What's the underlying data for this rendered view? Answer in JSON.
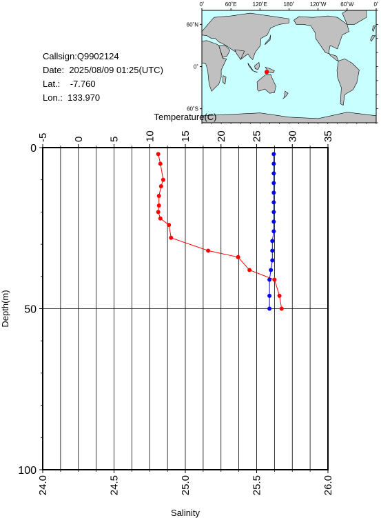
{
  "info": {
    "callsign_label": "Callsign:",
    "callsign": "Q9902124",
    "date_label": "Date:",
    "date": "2025/08/09 01:25(UTC)",
    "lat_label": "Lat.:",
    "lat": "-7.760",
    "lon_label": "Lon.:",
    "lon": "133.970"
  },
  "map": {
    "top_labels": [
      "0˚",
      "60˚E",
      "120˚E",
      "180˚",
      "120˚W",
      "60˚W",
      "0˚"
    ],
    "lat_labels": [
      "60˚N",
      "0˚",
      "60˚S"
    ],
    "ocean_color": "#c8ffff",
    "land_color": "#c0c0c0",
    "marker_color": "#ff0000",
    "marker_lon": 133.97,
    "marker_lat": -7.76
  },
  "chart_data": {
    "type": "line",
    "title": "",
    "top_axis": {
      "label": "Temperature(C)",
      "range": [
        -5,
        35
      ],
      "ticks": [
        "-5",
        "0",
        "5",
        "10",
        "15",
        "20",
        "25",
        "30",
        "35"
      ]
    },
    "bottom_axis": {
      "label": "Salinity",
      "range": [
        24.0,
        26.0
      ],
      "ticks": [
        "24.0",
        "24.5",
        "25.0",
        "25.5",
        "26.0"
      ]
    },
    "y_axis": {
      "label": "Depth(m)",
      "range": [
        0,
        100
      ],
      "inverted": true,
      "ticks": [
        "0",
        "50",
        "100"
      ]
    },
    "grid": true,
    "series": [
      {
        "color": "#ff0000",
        "axis": "temperature",
        "points": [
          [
            11.2,
            2
          ],
          [
            11.5,
            5
          ],
          [
            11.9,
            10
          ],
          [
            11.6,
            12
          ],
          [
            11.3,
            15
          ],
          [
            11.3,
            18
          ],
          [
            11.2,
            20
          ],
          [
            11.5,
            22
          ],
          [
            12.7,
            24
          ],
          [
            13.0,
            28
          ],
          [
            18.2,
            32
          ],
          [
            22.4,
            34
          ],
          [
            24.0,
            38
          ],
          [
            27.5,
            41
          ],
          [
            28.2,
            46
          ],
          [
            28.5,
            50
          ]
        ]
      },
      {
        "color": "#0000ff",
        "axis": "salinity",
        "points": [
          [
            25.62,
            2
          ],
          [
            25.62,
            5
          ],
          [
            25.62,
            8
          ],
          [
            25.62,
            11
          ],
          [
            25.62,
            14
          ],
          [
            25.62,
            17
          ],
          [
            25.62,
            20
          ],
          [
            25.62,
            23
          ],
          [
            25.62,
            26
          ],
          [
            25.61,
            29
          ],
          [
            25.61,
            32
          ],
          [
            25.61,
            35
          ],
          [
            25.6,
            38
          ],
          [
            25.59,
            41
          ],
          [
            25.59,
            46
          ],
          [
            25.59,
            50
          ]
        ]
      }
    ]
  }
}
